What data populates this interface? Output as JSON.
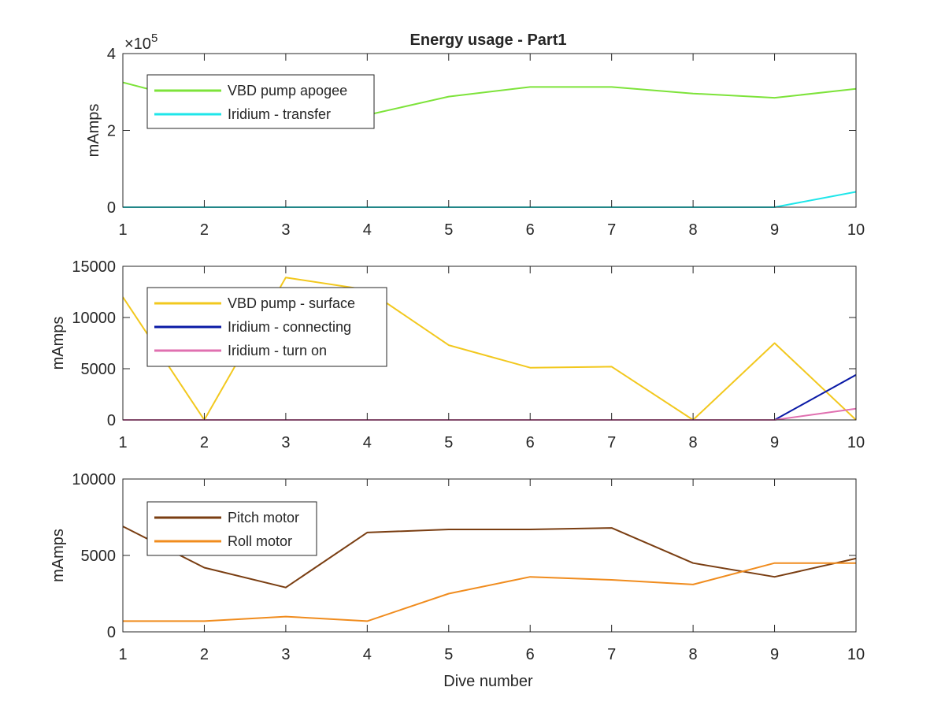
{
  "figure": {
    "title": "Energy usage - Part1",
    "xlabel": "Dive number",
    "colors": {
      "vbd_apogee": "#7de33a",
      "iridium_transfer": "#1ee6ea",
      "vbd_surface": "#f2c81e",
      "iridium_connecting": "#0a1aa6",
      "iridium_turn_on": "#e070b0",
      "pitch_motor": "#7a3e12",
      "roll_motor": "#f08c1e",
      "axis": "#262626"
    }
  },
  "chart_data": [
    {
      "type": "line",
      "title": "Energy usage - Part1",
      "xlabel": "",
      "ylabel": "mAmps",
      "exponent_label": "×10",
      "exponent_power": "5",
      "x": [
        1,
        2,
        3,
        4,
        5,
        6,
        7,
        8,
        9,
        10
      ],
      "xlim": [
        1,
        10
      ],
      "ylim": [
        0,
        400000
      ],
      "xticks": [
        "1",
        "2",
        "3",
        "4",
        "5",
        "6",
        "7",
        "8",
        "9",
        "10"
      ],
      "yticks": [
        {
          "value": 0,
          "label": "0"
        },
        {
          "value": 200000,
          "label": "2"
        },
        {
          "value": 400000,
          "label": "4"
        }
      ],
      "grid": false,
      "legend_position": "top-left",
      "series": [
        {
          "name": "VBD pump apogee",
          "color_key": "vbd_apogee",
          "values": [
            325000,
            270000,
            258000,
            240000,
            288000,
            313000,
            313000,
            296000,
            285000,
            308000
          ]
        },
        {
          "name": "Iridium - transfer",
          "color_key": "iridium_transfer",
          "values": [
            0,
            0,
            0,
            0,
            0,
            0,
            0,
            0,
            0,
            40000
          ]
        }
      ]
    },
    {
      "type": "line",
      "title": "",
      "xlabel": "",
      "ylabel": "mAmps",
      "x": [
        1,
        2,
        3,
        4,
        5,
        6,
        7,
        8,
        9,
        10
      ],
      "xlim": [
        1,
        10
      ],
      "ylim": [
        0,
        15000
      ],
      "xticks": [
        "1",
        "2",
        "3",
        "4",
        "5",
        "6",
        "7",
        "8",
        "9",
        "10"
      ],
      "yticks": [
        {
          "value": 0,
          "label": "0"
        },
        {
          "value": 5000,
          "label": "5000"
        },
        {
          "value": 10000,
          "label": "10000"
        },
        {
          "value": 15000,
          "label": "15000"
        }
      ],
      "grid": false,
      "legend_position": "top-left",
      "series": [
        {
          "name": "VBD pump - surface",
          "color_key": "vbd_surface",
          "values": [
            12000,
            0,
            13900,
            12700,
            7300,
            5100,
            5200,
            0,
            7500,
            0
          ]
        },
        {
          "name": "Iridium - connecting",
          "color_key": "iridium_connecting",
          "values": [
            0,
            0,
            0,
            0,
            0,
            0,
            0,
            0,
            0,
            4400
          ]
        },
        {
          "name": "Iridium - turn on",
          "color_key": "iridium_turn_on",
          "values": [
            0,
            0,
            0,
            0,
            0,
            0,
            0,
            0,
            0,
            1100
          ]
        }
      ]
    },
    {
      "type": "line",
      "title": "",
      "xlabel": "Dive number",
      "ylabel": "mAmps",
      "x": [
        1,
        2,
        3,
        4,
        5,
        6,
        7,
        8,
        9,
        10
      ],
      "xlim": [
        1,
        10
      ],
      "ylim": [
        0,
        10000
      ],
      "xticks": [
        "1",
        "2",
        "3",
        "4",
        "5",
        "6",
        "7",
        "8",
        "9",
        "10"
      ],
      "yticks": [
        {
          "value": 0,
          "label": "0"
        },
        {
          "value": 5000,
          "label": "5000"
        },
        {
          "value": 10000,
          "label": "10000"
        }
      ],
      "grid": false,
      "legend_position": "top-left",
      "series": [
        {
          "name": "Pitch motor",
          "color_key": "pitch_motor",
          "values": [
            6900,
            4200,
            2900,
            6500,
            6700,
            6700,
            6800,
            4500,
            3600,
            4800
          ]
        },
        {
          "name": "Roll motor",
          "color_key": "roll_motor",
          "values": [
            700,
            700,
            1000,
            700,
            2500,
            3600,
            3400,
            3100,
            4500,
            4500
          ]
        }
      ]
    }
  ]
}
